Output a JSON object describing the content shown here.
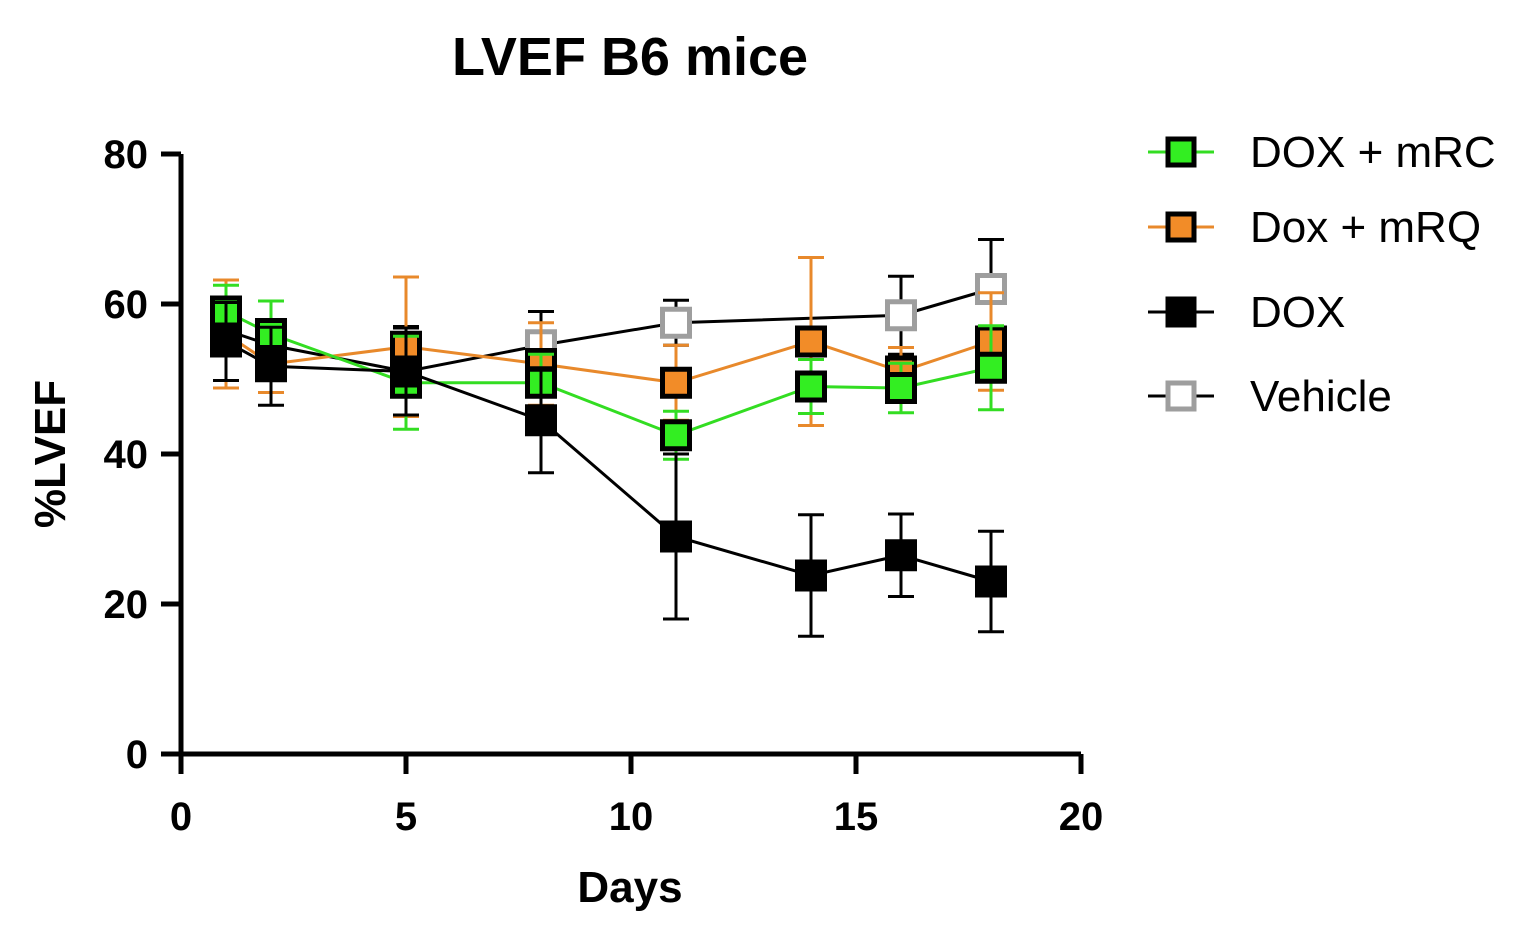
{
  "chart_data": {
    "type": "line",
    "title": "LVEF B6 mice",
    "xlabel": "Days",
    "ylabel": "%LVEF",
    "xlim": [
      0,
      20
    ],
    "ylim": [
      0,
      80
    ],
    "x_ticks": [
      0,
      5,
      10,
      15,
      20
    ],
    "y_ticks": [
      0,
      20,
      40,
      60,
      80
    ],
    "grid": false,
    "legend_position": "right",
    "series": [
      {
        "name": "Vehicle",
        "color": "#000000",
        "marker_fill": "#ffffff",
        "marker_edge": "#9e9e9e",
        "x": [
          1,
          2,
          5,
          8,
          11,
          16,
          18
        ],
        "y": [
          56.5,
          54.5,
          51,
          54.5,
          57.5,
          58.5,
          62
        ],
        "err": [
          2.5,
          1.5,
          6,
          4.5,
          3,
          5.2,
          6.6
        ]
      },
      {
        "name": "Dox + mRQ",
        "color": "#e8892b",
        "marker_fill": "#f28c28",
        "marker_edge": "#000000",
        "x": [
          1,
          2,
          5,
          8,
          11,
          14,
          16,
          18
        ],
        "y": [
          56,
          52,
          54.3,
          52,
          49.5,
          55,
          51,
          55
        ],
        "err": [
          7.2,
          3.8,
          9.3,
          5.5,
          5,
          11.2,
          3.2,
          6.5
        ]
      },
      {
        "name": "DOX + mRC",
        "color": "#33dd22",
        "marker_fill": "#33ee22",
        "marker_edge": "#000000",
        "x": [
          1,
          2,
          5,
          8,
          11,
          14,
          16,
          18
        ],
        "y": [
          59,
          56,
          49.5,
          49.5,
          42.5,
          49,
          48.8,
          51.5
        ],
        "err": [
          3.5,
          4.4,
          6.2,
          3.8,
          3.2,
          3.6,
          3.3,
          5.6
        ]
      },
      {
        "name": "DOX",
        "color": "#000000",
        "marker_fill": "#000000",
        "marker_edge": "#000000",
        "x": [
          1,
          2,
          5,
          8,
          11,
          14,
          16,
          18
        ],
        "y": [
          55,
          51.7,
          51,
          44.5,
          29,
          23.8,
          26.5,
          23
        ],
        "err": [
          5.2,
          5.2,
          5.8,
          7,
          11,
          8.1,
          5.5,
          6.7
        ]
      }
    ],
    "legend_order": [
      "DOX + mRC",
      "Dox + mRQ",
      "DOX",
      "Vehicle"
    ]
  }
}
